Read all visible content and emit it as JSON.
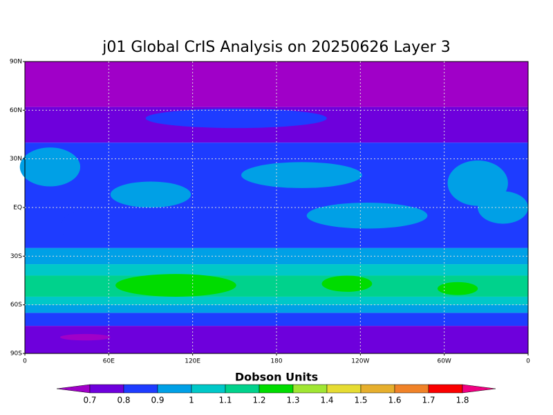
{
  "title": "j01 Global CrIS Analysis on 20250626 Layer 3",
  "map": {
    "y_ticks": [
      "90N",
      "60N",
      "30N",
      "EQ",
      "30S",
      "60S",
      "90S"
    ],
    "x_ticks": [
      "0",
      "60E",
      "120E",
      "180",
      "120W",
      "60W",
      "0"
    ],
    "grid": true
  },
  "colorbar": {
    "label": "Dobson Units",
    "levels": [
      0.7,
      0.8,
      0.9,
      1,
      1.1,
      1.2,
      1.3,
      1.4,
      1.5,
      1.6,
      1.7,
      1.8
    ],
    "colors": [
      "#a000c8",
      "#6e00dc",
      "#1e3cff",
      "#00a0e6",
      "#00c8c8",
      "#00d28c",
      "#00dc00",
      "#a0e632",
      "#e6dc32",
      "#e6af2d",
      "#f08228",
      "#fa0000",
      "#f00082"
    ]
  }
}
